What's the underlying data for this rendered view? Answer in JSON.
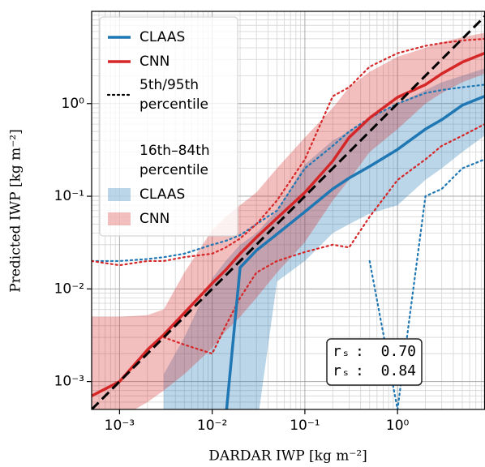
{
  "chart_data": {
    "type": "line",
    "x_label": "DARDAR IWP [kg m⁻²]",
    "y_label": "Predicted IWP [kg m⁻²]",
    "xscale": "log",
    "yscale": "log",
    "grid": true,
    "minor_grid": true,
    "identity_line": true,
    "legend": "upper left",
    "xlim": [
      0.0005,
      8.7
    ],
    "ylim": [
      0.0005,
      9.9
    ],
    "xticks": [
      {
        "value": 0.001,
        "label": "10⁻³"
      },
      {
        "value": 0.01,
        "label": "10⁻²"
      },
      {
        "value": 0.1,
        "label": "10⁻¹"
      },
      {
        "value": 1,
        "label": "10⁰"
      }
    ],
    "yticks": [
      {
        "value": 0.001,
        "label": "10⁻³"
      },
      {
        "value": 0.01,
        "label": "10⁻²"
      },
      {
        "value": 0.1,
        "label": "10⁻¹"
      },
      {
        "value": 1,
        "label": "10⁰"
      }
    ],
    "x": [
      0.0005,
      0.001,
      0.002,
      0.003,
      0.005,
      0.01,
      0.014,
      0.02,
      0.03,
      0.05,
      0.1,
      0.2,
      0.3,
      0.5,
      1,
      2,
      3,
      5,
      8.7
    ],
    "legend_percentile_5_95": [
      "5th/95th",
      "percentile"
    ],
    "legend_percentile_16_84": [
      "16th–84th",
      "percentile"
    ],
    "stat_symbol": "rₛ",
    "stat_separator": ":",
    "series": [
      {
        "name": "CLAAS",
        "color": "#1f77b4",
        "values": [
          null,
          null,
          null,
          null,
          null,
          null,
          0.0004,
          0.017,
          0.026,
          0.039,
          0.068,
          0.12,
          0.157,
          0.21,
          0.32,
          0.53,
          0.67,
          0.96,
          1.2
        ],
        "p16": [
          null,
          null,
          null,
          0.0003,
          0.0003,
          0.0003,
          0.0003,
          0.0003,
          0.0003,
          0.012,
          0.02,
          0.04,
          0.05,
          0.065,
          0.08,
          0.15,
          0.2,
          0.3,
          0.45
        ],
        "p84": [
          null,
          null,
          null,
          0.0012,
          0.003,
          0.013,
          0.02,
          0.03,
          0.04,
          0.07,
          0.22,
          0.4,
          0.5,
          0.7,
          1.0,
          1.4,
          1.7,
          2.0,
          2.4
        ],
        "p5": [
          null,
          null,
          null,
          null,
          null,
          null,
          null,
          null,
          null,
          null,
          null,
          null,
          null,
          0.02,
          0.0005,
          0.1,
          0.12,
          0.2,
          0.25
        ],
        "p95": [
          0.02,
          0.02,
          0.021,
          0.022,
          0.024,
          0.03,
          0.033,
          0.038,
          0.05,
          0.07,
          0.2,
          0.35,
          0.5,
          0.7,
          1.0,
          1.3,
          1.4,
          1.5,
          1.6
        ],
        "rs": {
          "value": 0.7,
          "label": "0.70"
        }
      },
      {
        "name": "CNN",
        "color": "#d62728",
        "values": [
          0.0007,
          0.001,
          0.0022,
          0.0032,
          0.0055,
          0.0115,
          0.016,
          0.024,
          0.036,
          0.058,
          0.11,
          0.24,
          0.43,
          0.7,
          1.17,
          1.6,
          2.1,
          2.8,
          3.5
        ],
        "p16": [
          0.0003,
          0.0004,
          0.0006,
          0.0008,
          0.0012,
          0.0023,
          0.0035,
          0.005,
          0.008,
          0.015,
          0.032,
          0.09,
          0.15,
          0.3,
          0.53,
          1.0,
          1.3,
          1.7,
          2.1
        ],
        "p84": [
          0.005,
          0.005,
          0.0052,
          0.006,
          0.015,
          0.043,
          0.06,
          0.08,
          0.11,
          0.2,
          0.43,
          0.9,
          1.5,
          2.2,
          3.2,
          4.0,
          4.6,
          5.2,
          5.8
        ],
        "p5": [
          null,
          null,
          null,
          0.003,
          0.0025,
          0.002,
          0.004,
          0.008,
          0.015,
          0.02,
          0.025,
          0.03,
          0.028,
          0.06,
          0.15,
          0.25,
          0.35,
          0.45,
          0.6
        ],
        "p95": [
          0.02,
          0.018,
          0.02,
          0.02,
          0.022,
          0.024,
          0.028,
          0.035,
          0.05,
          0.09,
          0.25,
          1.2,
          1.5,
          2.5,
          3.5,
          4.2,
          4.5,
          4.8,
          5.0
        ],
        "rs": {
          "value": 0.84,
          "label": "0.84"
        }
      }
    ]
  }
}
